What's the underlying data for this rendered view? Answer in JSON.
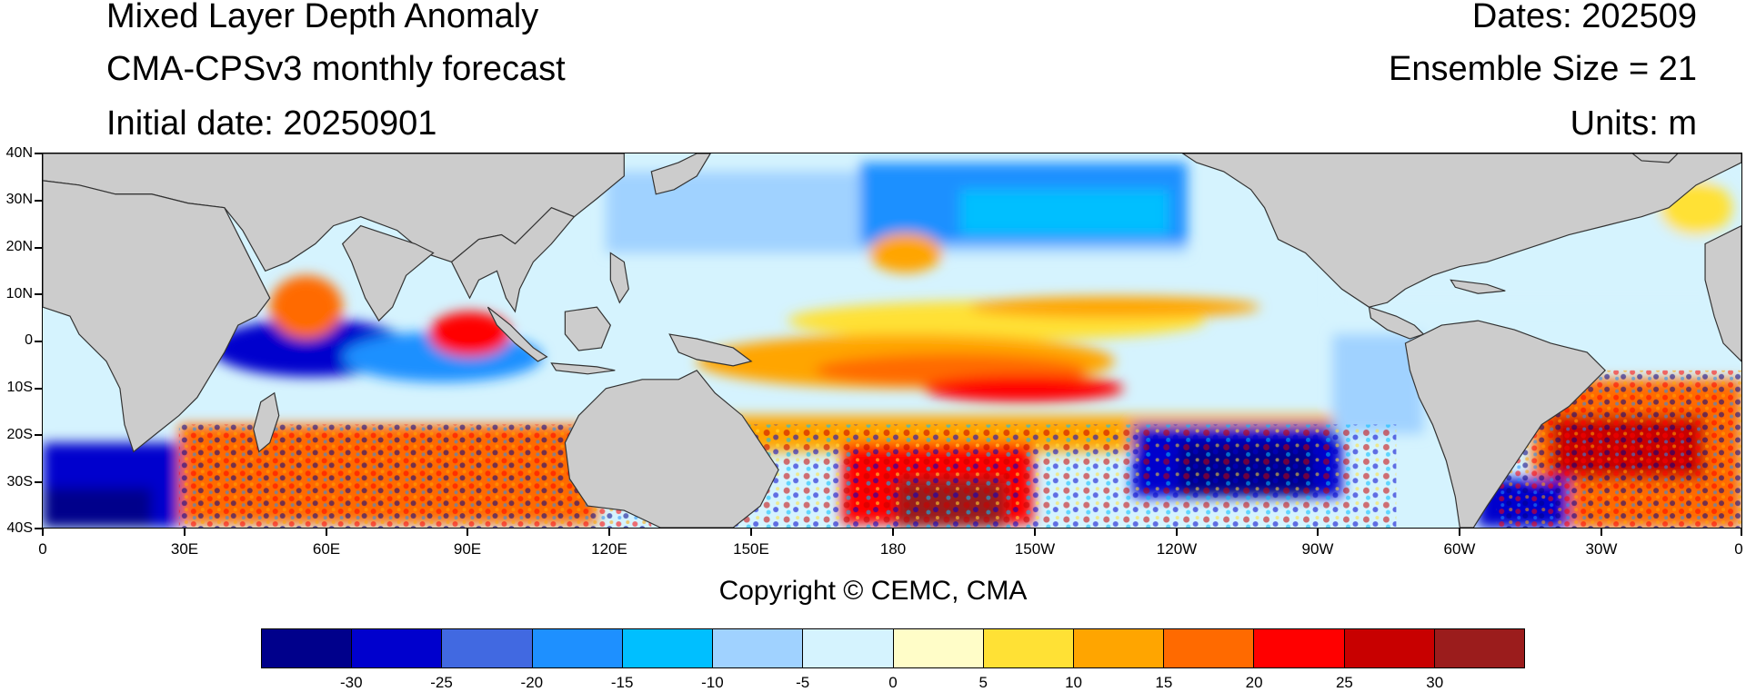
{
  "header": {
    "title": "Mixed Layer Depth Anomaly",
    "subtitle": "CMA-CPSv3 monthly forecast",
    "initial_date": "Initial date: 20250901",
    "dates": "Dates: 202509",
    "ensemble": "Ensemble Size = 21",
    "units": "Units: m"
  },
  "axes": {
    "y_labels": [
      "40N",
      "30N",
      "20N",
      "10N",
      "0",
      "10S",
      "20S",
      "30S",
      "40S"
    ],
    "x_labels": [
      "0",
      "30E",
      "60E",
      "90E",
      "120E",
      "150E",
      "180",
      "150W",
      "120W",
      "90W",
      "60W",
      "30W",
      "0"
    ]
  },
  "copyright": "Copyright © CEMC, CMA",
  "colorbar": {
    "colors": [
      "#00008b",
      "#0000cd",
      "#4169e1",
      "#1e90ff",
      "#00bfff",
      "#a0d2ff",
      "#d5f3fe",
      "#fffdc8",
      "#ffe135",
      "#ffa500",
      "#ff6a00",
      "#ff0000",
      "#c80000",
      "#9b1c1c"
    ],
    "labels": [
      "-30",
      "-25",
      "-20",
      "-15",
      "-10",
      "-5",
      "0",
      "5",
      "10",
      "15",
      "20",
      "25",
      "30"
    ]
  },
  "land_color": "#cccccc",
  "ocean_background": "#d5f3fe"
}
